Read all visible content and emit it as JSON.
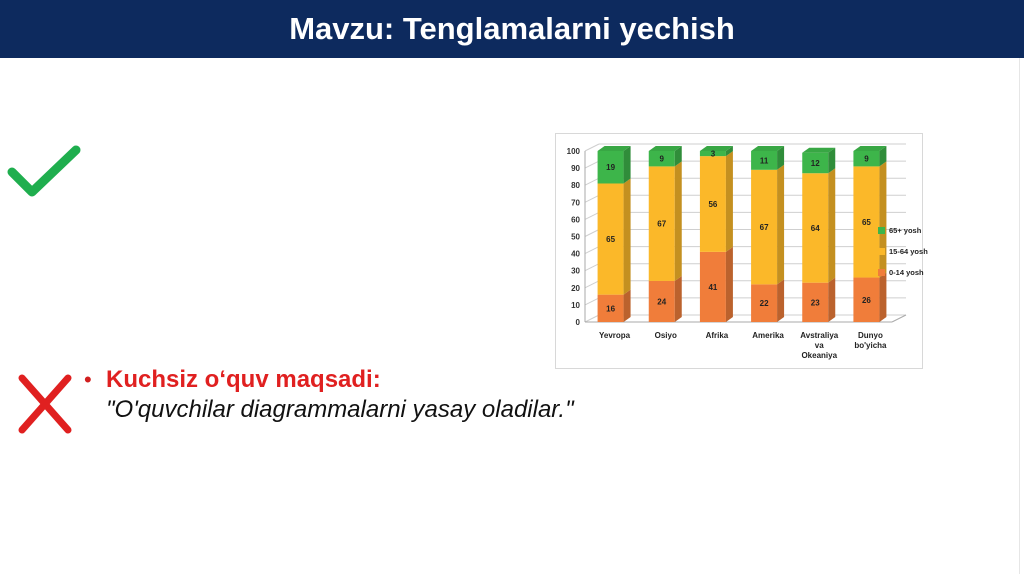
{
  "header": {
    "title": "Mavzu: Tenglamalarni yechish",
    "bg_color": "#0d2a5e"
  },
  "icons": {
    "check": "check-icon",
    "cross": "cross-icon",
    "check_color": "#1fae4e",
    "cross_color": "#e02020"
  },
  "bullet": {
    "heading": "Kuchsiz o‘quv maqsadi:",
    "quote": "\"O'quvchilar diagrammalarni yasay oladilar.\""
  },
  "chart_data": {
    "type": "bar",
    "stacked": true,
    "ylim": [
      0,
      100
    ],
    "yticks": [
      0,
      10,
      20,
      30,
      40,
      50,
      60,
      70,
      80,
      90,
      100
    ],
    "grid": true,
    "legend_position": "right",
    "categories": [
      [
        "Yevropa"
      ],
      [
        "Osiyo"
      ],
      [
        "Afrika"
      ],
      [
        "Amerika"
      ],
      [
        "Avstraliya",
        "va",
        "Okeaniya"
      ],
      [
        "Dunyo",
        "bo'yicha"
      ]
    ],
    "series": [
      {
        "name": "0-14 yosh",
        "color": "#f07d3a",
        "values": [
          16,
          24,
          41,
          22,
          23,
          26
        ]
      },
      {
        "name": "15-64 yosh",
        "color": "#fbb829",
        "values": [
          65,
          67,
          56,
          67,
          64,
          65
        ]
      },
      {
        "name": "65+ yosh",
        "color": "#3db54a",
        "values": [
          19,
          9,
          3,
          11,
          12,
          9
        ]
      }
    ],
    "legend_order": [
      "65+ yosh",
      "15-64 yosh",
      "0-14 yosh"
    ]
  }
}
